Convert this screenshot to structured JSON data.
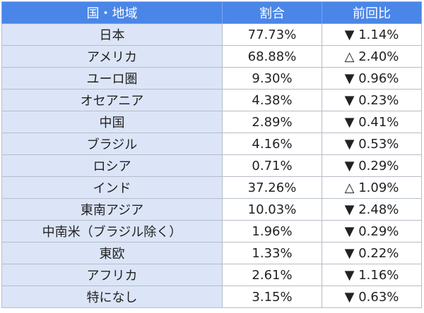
{
  "table": {
    "headers": [
      "国・地域",
      "割合",
      "前回比"
    ],
    "rows": [
      {
        "region": "日本",
        "share": "77.73%",
        "change": "▼ 1.14%"
      },
      {
        "region": "アメリカ",
        "share": "68.88%",
        "change": "△ 2.40%"
      },
      {
        "region": "ユーロ圏",
        "share": "9.30%",
        "change": "▼ 0.96%"
      },
      {
        "region": "オセアニア",
        "share": "4.38%",
        "change": "▼ 0.23%"
      },
      {
        "region": "中国",
        "share": "2.89%",
        "change": "▼ 0.41%"
      },
      {
        "region": "ブラジル",
        "share": "4.16%",
        "change": "▼ 0.53%"
      },
      {
        "region": "ロシア",
        "share": "0.71%",
        "change": "▼ 0.29%"
      },
      {
        "region": "インド",
        "share": "37.26%",
        "change": "△ 1.09%"
      },
      {
        "region": "東南アジア",
        "share": "10.03%",
        "change": "▼ 2.48%"
      },
      {
        "region": "中南米（ブラジル除く）",
        "share": "1.96%",
        "change": "▼ 0.29%"
      },
      {
        "region": "東欧",
        "share": "1.33%",
        "change": "▼ 0.22%"
      },
      {
        "region": "アフリカ",
        "share": "2.61%",
        "change": "▼ 1.16%"
      },
      {
        "region": "特になし",
        "share": "3.15%",
        "change": "▼ 0.63%"
      }
    ]
  },
  "colors": {
    "header_bg": "#4a86e8",
    "region_cell_bg": "#dbe5f7",
    "border": "#b7bcc6"
  }
}
